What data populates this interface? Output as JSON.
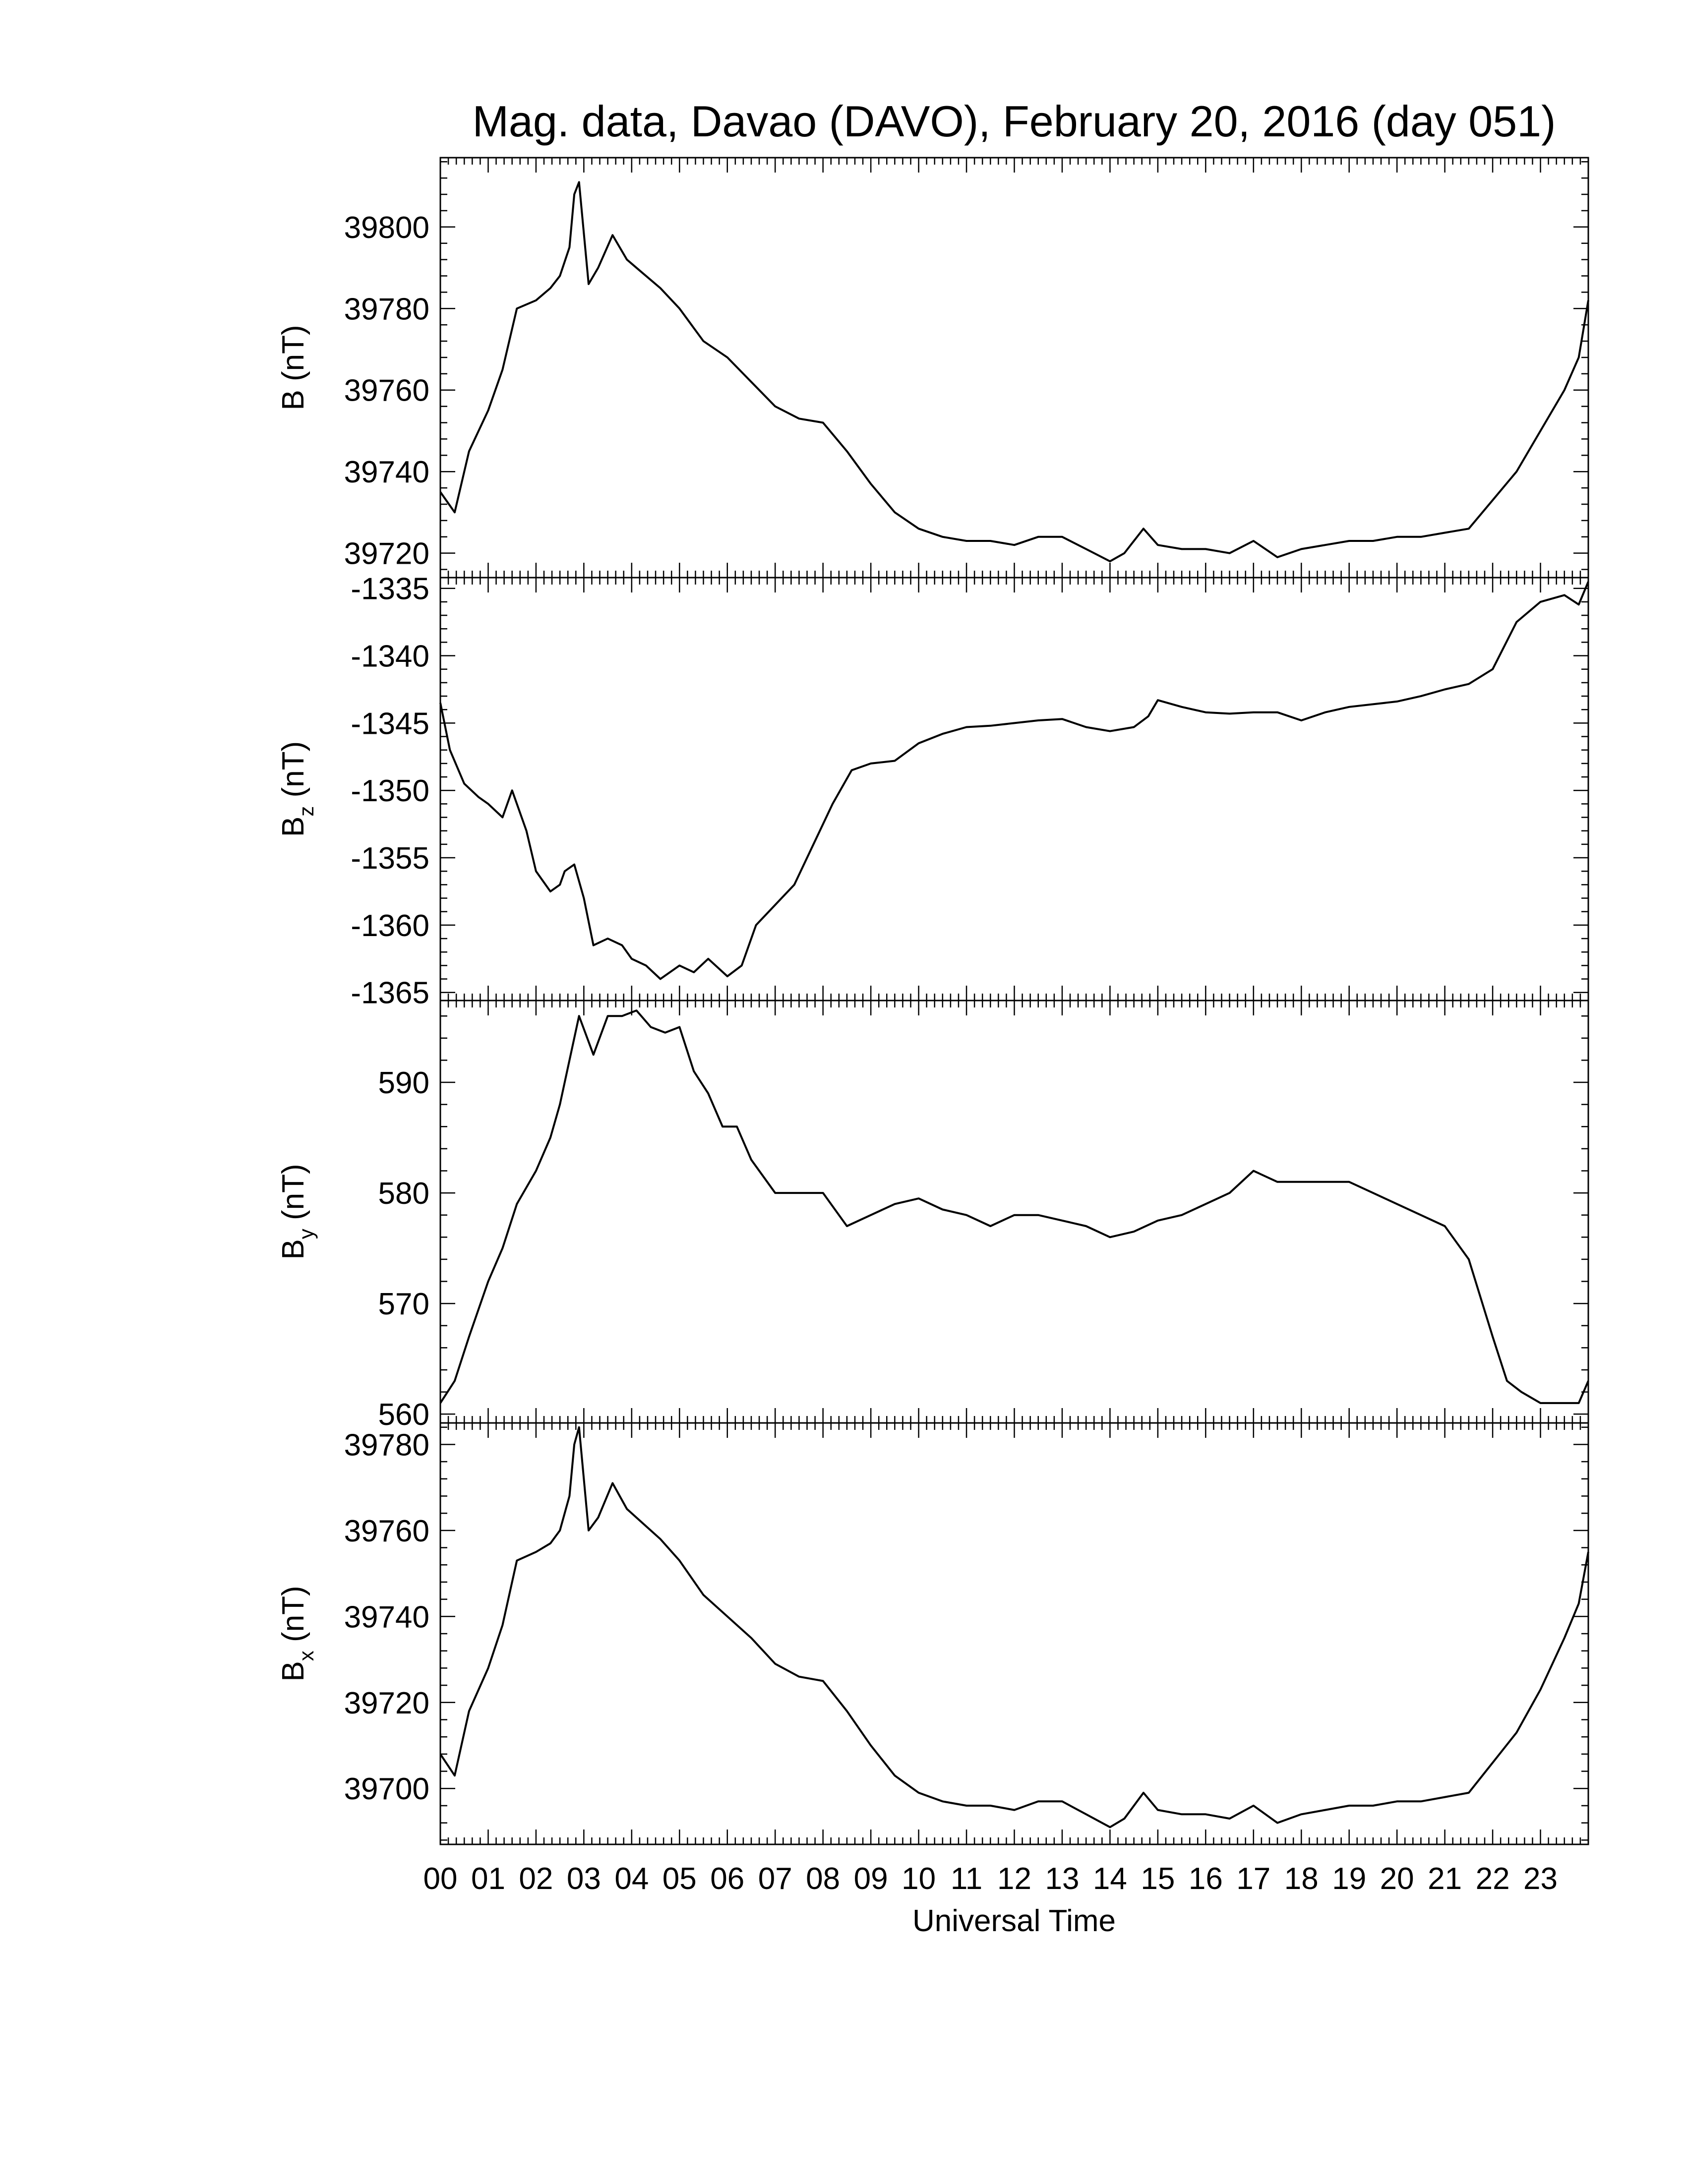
{
  "chart_data": {
    "type": "line",
    "title": "Mag. data, Davao (DAVO), February 20, 2016 (day 051)",
    "xlabel": "Universal Time",
    "xlim": [
      0,
      24
    ],
    "x_tick_labels": [
      "00",
      "01",
      "02",
      "03",
      "04",
      "05",
      "06",
      "07",
      "08",
      "09",
      "10",
      "11",
      "12",
      "13",
      "14",
      "15",
      "16",
      "17",
      "18",
      "19",
      "20",
      "21",
      "22",
      "23"
    ],
    "grid": false,
    "panels": [
      {
        "ylabel_main": "B",
        "ylabel_sub": "",
        "ylabel_unit": "(nT)",
        "ylim": [
          39714,
          39817
        ],
        "yticks": [
          39720,
          39740,
          39760,
          39780,
          39800
        ],
        "ytick_labels": [
          "39720",
          "39740",
          "39760",
          "39780",
          "39800"
        ],
        "x": [
          0,
          0.3,
          0.6,
          1.0,
          1.3,
          1.6,
          2.0,
          2.3,
          2.5,
          2.7,
          2.8,
          2.9,
          3.1,
          3.3,
          3.6,
          3.9,
          4.2,
          4.6,
          5.0,
          5.5,
          6.0,
          6.5,
          7.0,
          7.5,
          8.0,
          8.5,
          9.0,
          9.5,
          10.0,
          10.5,
          11.0,
          11.5,
          12.0,
          12.5,
          13.0,
          13.5,
          14.0,
          14.3,
          14.7,
          15.0,
          15.5,
          16.0,
          16.5,
          17.0,
          17.5,
          18.0,
          18.5,
          19.0,
          19.5,
          20.0,
          20.5,
          21.0,
          21.5,
          22.0,
          22.5,
          23.0,
          23.5,
          23.8,
          24.0
        ],
        "y": [
          39735,
          39730,
          39745,
          39755,
          39765,
          39780,
          39782,
          39785,
          39788,
          39795,
          39808,
          39811,
          39786,
          39790,
          39798,
          39792,
          39789,
          39785,
          39780,
          39772,
          39768,
          39762,
          39756,
          39753,
          39752,
          39745,
          39737,
          39730,
          39726,
          39724,
          39723,
          39723,
          39722,
          39724,
          39724,
          39721,
          39718,
          39720,
          39726,
          39722,
          39721,
          39721,
          39720,
          39723,
          39719,
          39721,
          39722,
          39723,
          39723,
          39724,
          39724,
          39725,
          39726,
          39733,
          39740,
          39750,
          39760,
          39768,
          39782
        ]
      },
      {
        "ylabel_main": "B",
        "ylabel_sub": "z",
        "ylabel_unit": "(nT)",
        "ylim": [
          -1365.6,
          -1334.2
        ],
        "yticks": [
          -1365,
          -1360,
          -1355,
          -1350,
          -1345,
          -1340,
          -1335
        ],
        "ytick_labels": [
          "-1365",
          "-1360",
          "-1355",
          "-1350",
          "-1345",
          "-1340",
          "-1335"
        ],
        "x": [
          0,
          0.2,
          0.5,
          0.8,
          1.0,
          1.3,
          1.5,
          1.8,
          2.0,
          2.3,
          2.5,
          2.6,
          2.8,
          3.0,
          3.2,
          3.5,
          3.8,
          4.0,
          4.3,
          4.6,
          5.0,
          5.3,
          5.6,
          6.0,
          6.3,
          6.6,
          7.0,
          7.4,
          7.8,
          8.2,
          8.6,
          9.0,
          9.5,
          10.0,
          10.5,
          11.0,
          11.5,
          12.0,
          12.5,
          13.0,
          13.5,
          14.0,
          14.5,
          14.8,
          15.0,
          15.5,
          16.0,
          16.5,
          17.0,
          17.5,
          18.0,
          18.5,
          19.0,
          19.5,
          20.0,
          20.5,
          21.0,
          21.5,
          22.0,
          22.5,
          23.0,
          23.5,
          23.8,
          24.0
        ],
        "y": [
          -1343.5,
          -1347,
          -1349.5,
          -1350.5,
          -1351,
          -1352,
          -1350,
          -1353,
          -1356,
          -1357.5,
          -1357,
          -1356,
          -1355.5,
          -1358,
          -1361.5,
          -1361,
          -1361.5,
          -1362.5,
          -1363,
          -1364,
          -1363,
          -1363.5,
          -1362.5,
          -1363.8,
          -1363,
          -1360,
          -1358.5,
          -1357,
          -1354,
          -1351,
          -1348.5,
          -1348,
          -1347.8,
          -1346.5,
          -1345.8,
          -1345.3,
          -1345.2,
          -1345,
          -1344.8,
          -1344.7,
          -1345.3,
          -1345.6,
          -1345.3,
          -1344.5,
          -1343.3,
          -1343.8,
          -1344.2,
          -1344.3,
          -1344.2,
          -1344.2,
          -1344.8,
          -1344.2,
          -1343.8,
          -1343.6,
          -1343.4,
          -1343,
          -1342.5,
          -1342.1,
          -1341,
          -1337.5,
          -1336,
          -1335.5,
          -1336.2,
          -1334.5
        ]
      },
      {
        "ylabel_main": "B",
        "ylabel_sub": "y",
        "ylabel_unit": "(nT)",
        "ylim": [
          559.2,
          597.4
        ],
        "yticks": [
          560,
          570,
          580,
          590
        ],
        "ytick_labels": [
          "560",
          "570",
          "580",
          "590"
        ],
        "x": [
          0,
          0.3,
          0.6,
          1.0,
          1.3,
          1.6,
          2.0,
          2.3,
          2.5,
          2.7,
          2.9,
          3.2,
          3.5,
          3.8,
          4.1,
          4.4,
          4.7,
          5.0,
          5.3,
          5.6,
          5.9,
          6.2,
          6.5,
          7.0,
          7.5,
          8.0,
          8.5,
          9.0,
          9.5,
          10.0,
          10.5,
          11.0,
          11.5,
          12.0,
          12.5,
          13.0,
          13.5,
          14.0,
          14.5,
          15.0,
          15.5,
          16.0,
          16.5,
          17.0,
          17.5,
          18.0,
          18.5,
          19.0,
          19.5,
          20.0,
          20.5,
          21.0,
          21.5,
          22.0,
          22.3,
          22.6,
          23.0,
          23.4,
          23.8,
          24.0
        ],
        "y": [
          561,
          563,
          567,
          572,
          575,
          579,
          582,
          585,
          588,
          592,
          596,
          592.5,
          596,
          596,
          596.5,
          595,
          594.5,
          595,
          591,
          589,
          586,
          586,
          583,
          580,
          580,
          580,
          577,
          578,
          579,
          579.5,
          578.5,
          578,
          577,
          578,
          578,
          577.5,
          577,
          576,
          576.5,
          577.5,
          578,
          579,
          580,
          582,
          581,
          581,
          581,
          581,
          580,
          579,
          578,
          577,
          574,
          567,
          563,
          562,
          561,
          561,
          561,
          563
        ]
      },
      {
        "ylabel_main": "B",
        "ylabel_sub": "x",
        "ylabel_unit": "(nT)",
        "ylim": [
          39687,
          39785
        ],
        "yticks": [
          39700,
          39720,
          39740,
          39760,
          39780
        ],
        "ytick_labels": [
          "39700",
          "39720",
          "39740",
          "39760",
          "39780"
        ],
        "x": [
          0,
          0.3,
          0.6,
          1.0,
          1.3,
          1.6,
          2.0,
          2.3,
          2.5,
          2.7,
          2.8,
          2.9,
          3.1,
          3.3,
          3.6,
          3.9,
          4.2,
          4.6,
          5.0,
          5.5,
          6.0,
          6.5,
          7.0,
          7.5,
          8.0,
          8.5,
          9.0,
          9.5,
          10.0,
          10.5,
          11.0,
          11.5,
          12.0,
          12.5,
          13.0,
          13.5,
          14.0,
          14.3,
          14.7,
          15.0,
          15.5,
          16.0,
          16.5,
          17.0,
          17.5,
          18.0,
          18.5,
          19.0,
          19.5,
          20.0,
          20.5,
          21.0,
          21.5,
          22.0,
          22.5,
          23.0,
          23.5,
          23.8,
          24.0
        ],
        "y": [
          39708,
          39703,
          39718,
          39728,
          39738,
          39753,
          39755,
          39757,
          39760,
          39768,
          39780,
          39784,
          39760,
          39763,
          39771,
          39765,
          39762,
          39758,
          39753,
          39745,
          39740,
          39735,
          39729,
          39726,
          39725,
          39718,
          39710,
          39703,
          39699,
          39697,
          39696,
          39696,
          39695,
          39697,
          39697,
          39694,
          39691,
          39693,
          39699,
          39695,
          39694,
          39694,
          39693,
          39696,
          39692,
          39694,
          39695,
          39696,
          39696,
          39697,
          39697,
          39698,
          39699,
          39706,
          39713,
          39723,
          39735,
          39743,
          39755
        ]
      }
    ]
  }
}
